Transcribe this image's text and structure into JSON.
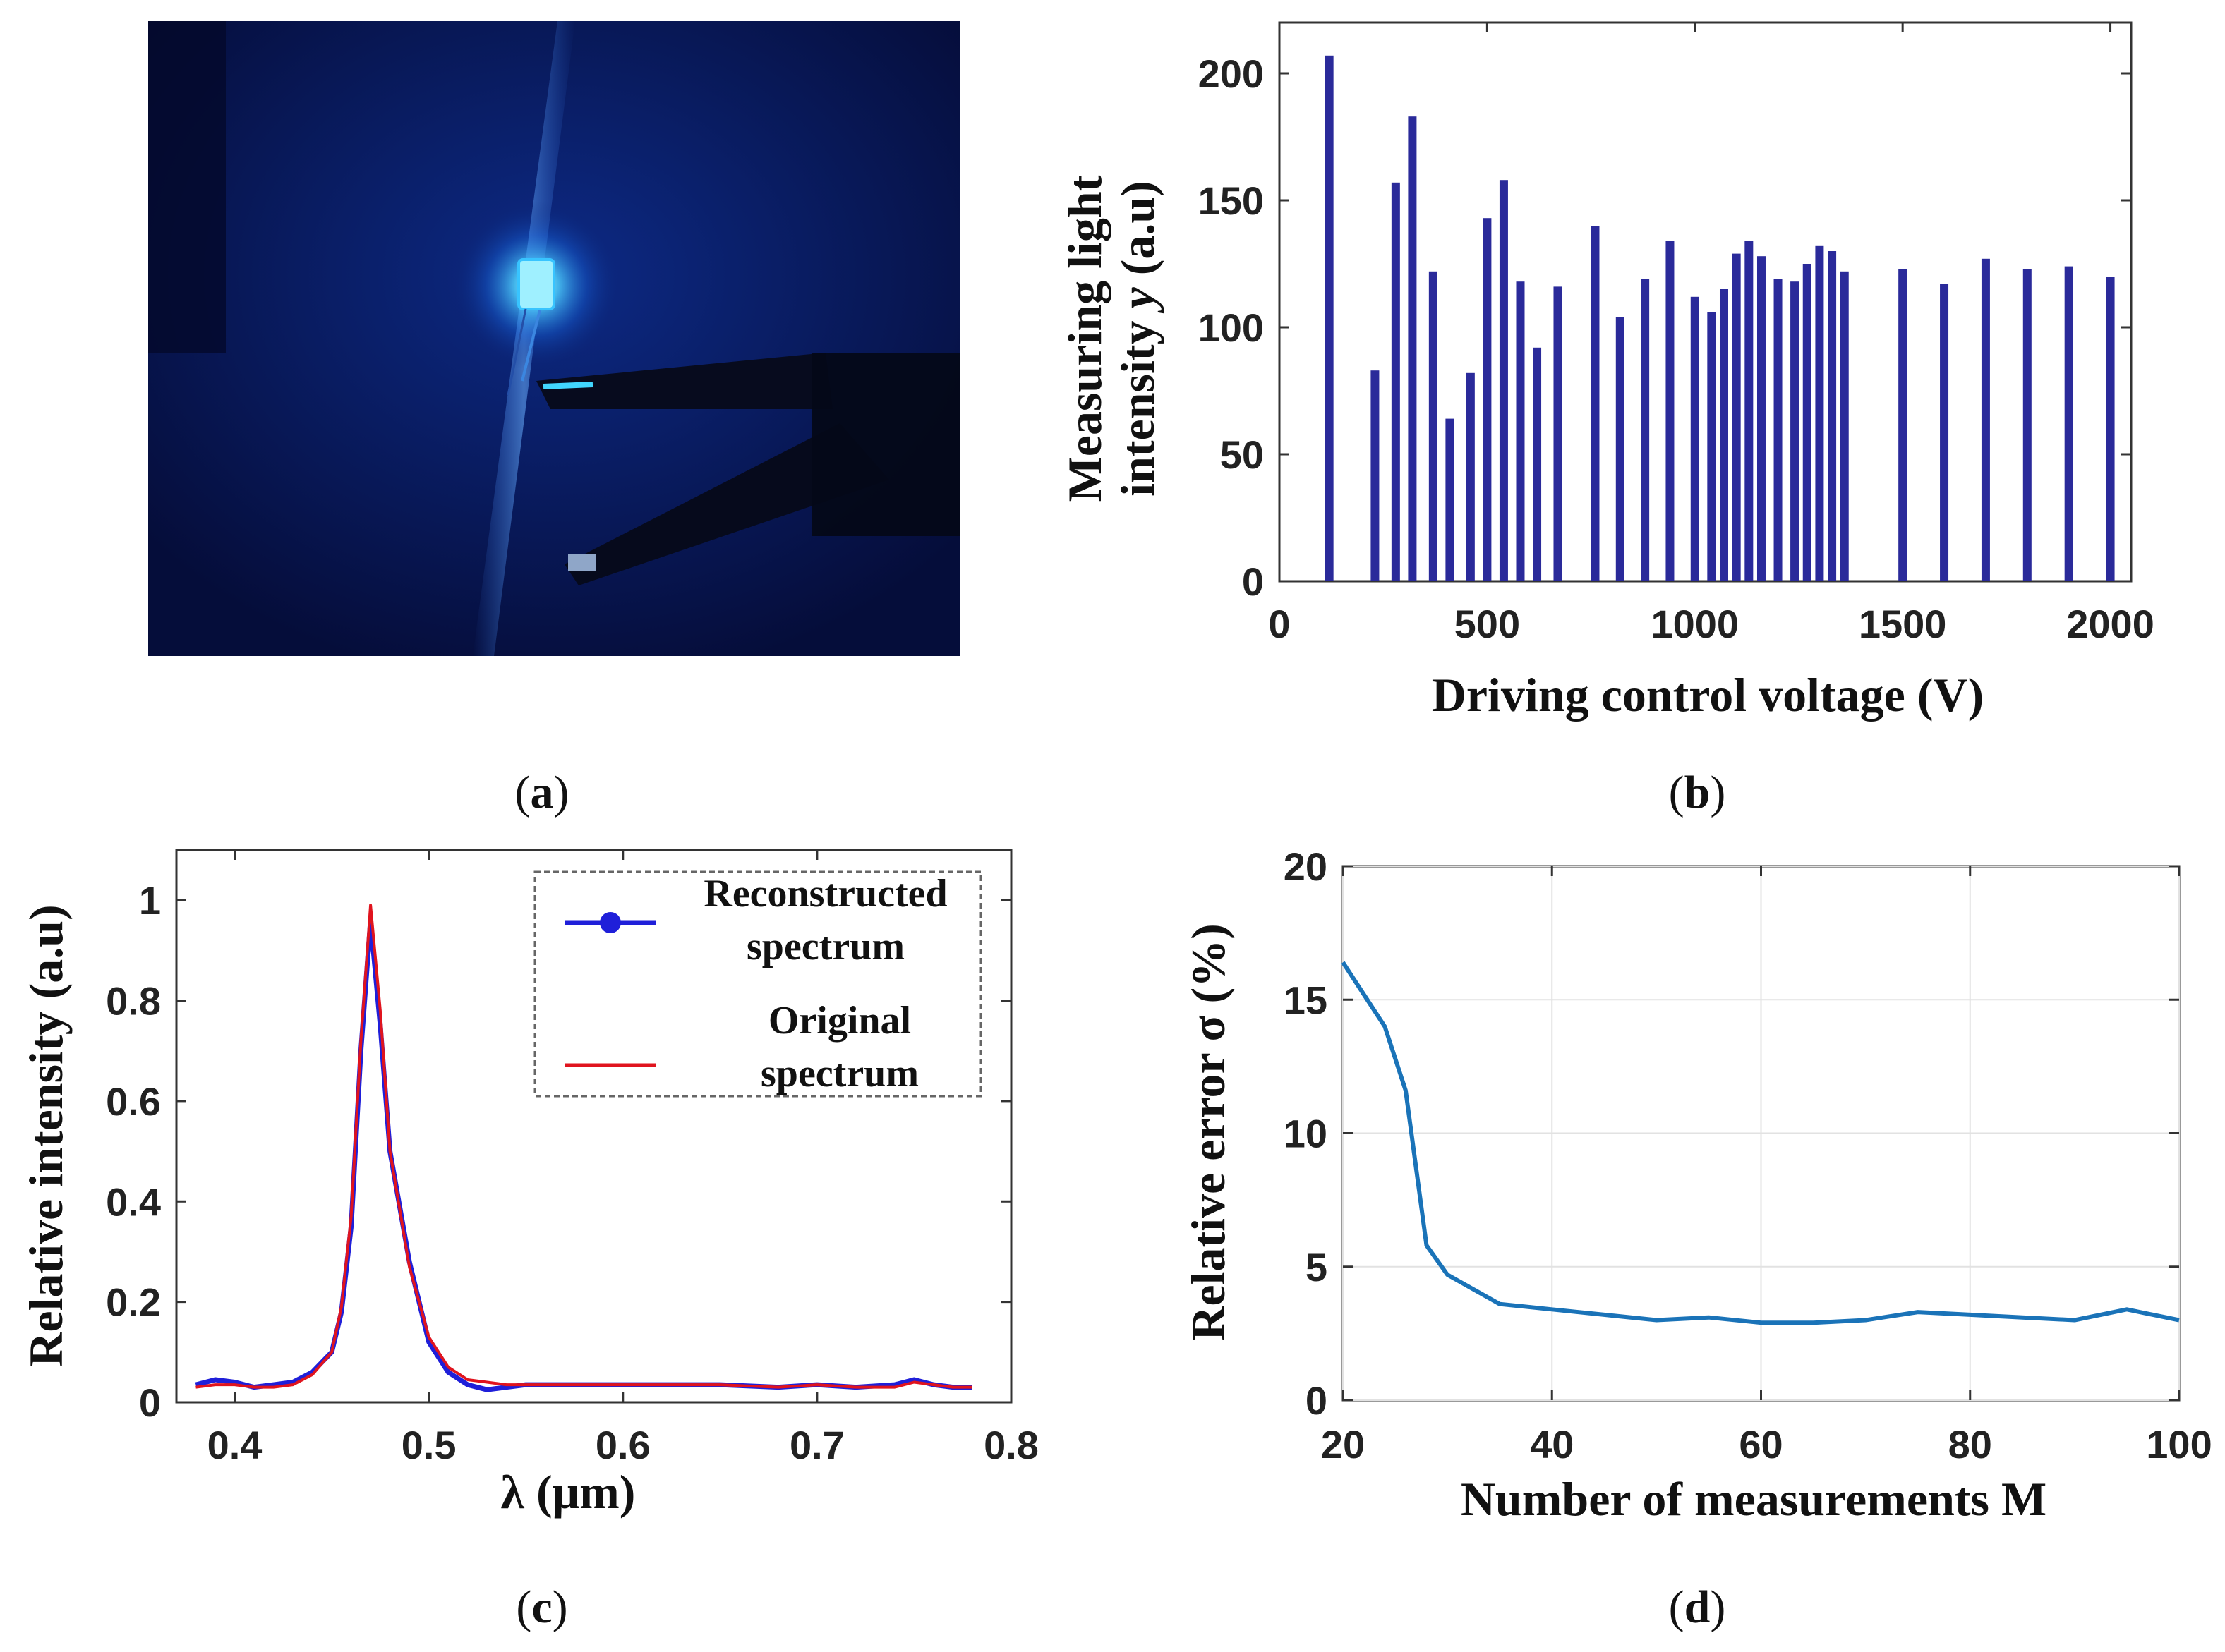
{
  "panels": {
    "a": {
      "letter": "a",
      "photo_description_icon": "blue-led-photo"
    },
    "b": {
      "letter": "b"
    },
    "c": {
      "letter": "c"
    },
    "d": {
      "letter": "d"
    }
  },
  "chart_data": [
    {
      "id": "b",
      "type": "bar",
      "title": "",
      "xlabel": "Driving control voltage (V)",
      "ylabel_line1": "Measuring light",
      "ylabel_line2_prefix": "intensity ",
      "ylabel_line2_var": "y",
      "ylabel_line2_suffix": " (a.u)",
      "xlim": [
        0,
        2050
      ],
      "ylim": [
        0,
        220
      ],
      "xticks": [
        0,
        500,
        1000,
        1500,
        2000
      ],
      "yticks": [
        0,
        50,
        100,
        150,
        200
      ],
      "bar_color": "#2a2a9a",
      "x": [
        120,
        230,
        280,
        320,
        370,
        410,
        460,
        500,
        540,
        580,
        620,
        670,
        760,
        820,
        880,
        940,
        1000,
        1040,
        1070,
        1100,
        1130,
        1160,
        1200,
        1240,
        1270,
        1300,
        1330,
        1360,
        1500,
        1600,
        1700,
        1800,
        1900,
        2000
      ],
      "values": [
        207,
        83,
        157,
        183,
        122,
        64,
        82,
        143,
        158,
        118,
        92,
        116,
        140,
        104,
        119,
        134,
        112,
        106,
        115,
        129,
        134,
        128,
        119,
        118,
        125,
        132,
        130,
        122,
        123,
        117,
        127,
        123,
        124,
        120
      ]
    },
    {
      "id": "c",
      "type": "line",
      "title": "",
      "xlabel": "λ (μm)",
      "ylabel": "Relative intensity (a.u)",
      "xlim": [
        0.37,
        0.8
      ],
      "ylim": [
        0,
        1.1
      ],
      "xticks": [
        0.4,
        0.5,
        0.6,
        0.7,
        0.8
      ],
      "xtick_labels": [
        "0.4",
        "0.5",
        "0.6",
        "0.7",
        "0.8"
      ],
      "yticks": [
        0,
        0.2,
        0.4,
        0.6,
        0.8,
        1
      ],
      "ytick_labels": [
        "0",
        "0.2",
        "0.4",
        "0.6",
        "0.8",
        "1"
      ],
      "legend": {
        "position": "top-right",
        "entries": [
          {
            "line1": "Reconstructed",
            "line2": "spectrum",
            "color": "#1f1fd9",
            "marker": "circle"
          },
          {
            "line1": "Original",
            "line2": "spectrum",
            "color": "#e0141e",
            "marker": "none"
          }
        ]
      },
      "series": [
        {
          "name": "Reconstructed spectrum",
          "color": "#1f1fd9",
          "x": [
            0.38,
            0.39,
            0.4,
            0.41,
            0.42,
            0.43,
            0.44,
            0.45,
            0.455,
            0.46,
            0.465,
            0.47,
            0.475,
            0.48,
            0.49,
            0.5,
            0.51,
            0.52,
            0.53,
            0.54,
            0.55,
            0.6,
            0.65,
            0.68,
            0.7,
            0.72,
            0.74,
            0.75,
            0.76,
            0.77,
            0.78
          ],
          "y": [
            0.035,
            0.045,
            0.04,
            0.03,
            0.035,
            0.04,
            0.06,
            0.1,
            0.18,
            0.35,
            0.7,
            0.96,
            0.75,
            0.5,
            0.28,
            0.12,
            0.06,
            0.035,
            0.025,
            0.03,
            0.035,
            0.035,
            0.035,
            0.03,
            0.035,
            0.03,
            0.035,
            0.045,
            0.035,
            0.03,
            0.03
          ]
        },
        {
          "name": "Original spectrum",
          "color": "#e0141e",
          "x": [
            0.38,
            0.39,
            0.4,
            0.41,
            0.42,
            0.43,
            0.44,
            0.45,
            0.455,
            0.46,
            0.465,
            0.47,
            0.475,
            0.48,
            0.49,
            0.5,
            0.51,
            0.52,
            0.53,
            0.54,
            0.55,
            0.6,
            0.65,
            0.68,
            0.7,
            0.72,
            0.74,
            0.75,
            0.76,
            0.77,
            0.78
          ],
          "y": [
            0.03,
            0.035,
            0.035,
            0.03,
            0.03,
            0.035,
            0.055,
            0.1,
            0.19,
            0.37,
            0.72,
            0.99,
            0.78,
            0.5,
            0.27,
            0.13,
            0.07,
            0.045,
            0.04,
            0.035,
            0.035,
            0.035,
            0.035,
            0.03,
            0.035,
            0.03,
            0.03,
            0.04,
            0.035,
            0.03,
            0.03
          ]
        }
      ]
    },
    {
      "id": "d",
      "type": "line",
      "title": "",
      "xlabel": "Number of measurements M",
      "ylabel": "Relative error σ (%)",
      "xlim": [
        20,
        100
      ],
      "ylim": [
        0,
        20
      ],
      "xticks": [
        20,
        40,
        60,
        80,
        100
      ],
      "yticks": [
        0,
        5,
        10,
        15,
        20
      ],
      "grid": true,
      "series": [
        {
          "name": "Relative error",
          "color": "#1a73b8",
          "x": [
            20,
            22,
            24,
            26,
            28,
            30,
            35,
            40,
            45,
            50,
            55,
            60,
            65,
            70,
            75,
            80,
            85,
            90,
            95,
            100
          ],
          "y": [
            16.4,
            15.2,
            14.0,
            11.6,
            5.8,
            4.7,
            3.6,
            3.4,
            3.2,
            3.0,
            3.1,
            2.9,
            2.9,
            3.0,
            3.3,
            3.2,
            3.1,
            3.0,
            3.4,
            3.0
          ]
        }
      ]
    }
  ]
}
